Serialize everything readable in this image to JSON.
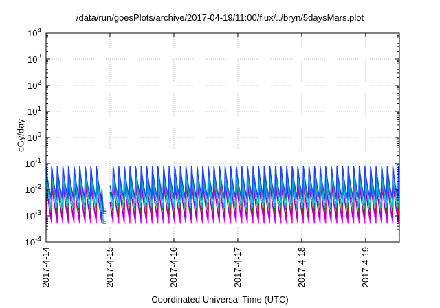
{
  "chart_data": {
    "type": "line",
    "title": "/data/run/goesPlots/archive/2017-04-19/11:00/flux/../bryn/5daysMars.plot",
    "xlabel": "Coordinated Universal Time (UTC)",
    "ylabel": "cGy/day",
    "yscale": "log",
    "ylim": [
      0.0001,
      10000
    ],
    "xlim": [
      "2017-04-14 00:00",
      "2017-04-19 12:40"
    ],
    "yticks": [
      {
        "value": 0.0001,
        "base": "10",
        "exp": "-4"
      },
      {
        "value": 0.001,
        "base": "10",
        "exp": "-3"
      },
      {
        "value": 0.01,
        "base": "10",
        "exp": "-2"
      },
      {
        "value": 0.1,
        "base": "10",
        "exp": "-1"
      },
      {
        "value": 1,
        "base": "10",
        "exp": "0"
      },
      {
        "value": 10,
        "base": "10",
        "exp": "1"
      },
      {
        "value": 100,
        "base": "10",
        "exp": "2"
      },
      {
        "value": 1000,
        "base": "10",
        "exp": "3"
      },
      {
        "value": 10000,
        "base": "10",
        "exp": "4"
      }
    ],
    "xticks": [
      "2017-4-14",
      "2017-4-15",
      "2017-4-16",
      "2017-4-17",
      "2017-4-18",
      "2017-4-19"
    ],
    "grid": true,
    "legend": "none",
    "gap": {
      "from": "2017-04-14 22:30",
      "to": "2017-04-15 00:00"
    },
    "cycle": {
      "period_hours": 2.1,
      "rise_hours": 0.25,
      "note": "sawtooth pattern repeats every ~2.1 h across the window"
    },
    "series": [
      {
        "color": "#ff00ff",
        "peak": 0.02,
        "trough": 0.0005
      },
      {
        "color": "#c000c0",
        "peak": 0.025,
        "trough": 0.0007
      },
      {
        "color": "#9400d3",
        "peak": 0.03,
        "trough": 0.0009
      },
      {
        "color": "#ff0000",
        "peak": 0.06,
        "trough": 0.0012
      },
      {
        "color": "#008000",
        "peak": 0.07,
        "trough": 0.0015
      },
      {
        "color": "#00c0c0",
        "peak": 0.05,
        "trough": 0.002
      },
      {
        "color": "#00d0ff",
        "peak": 0.06,
        "trough": 0.003
      },
      {
        "color": "#0080ff",
        "peak": 0.08,
        "trough": 0.004
      },
      {
        "color": "#2040ff",
        "peak": 0.09,
        "trough": 0.005
      }
    ],
    "dip": {
      "from": "2017-04-14 20:30",
      "to": "2017-04-14 23:00",
      "values": [
        0.0005,
        0.0006,
        0.0012,
        0.0015,
        0.002
      ]
    }
  }
}
